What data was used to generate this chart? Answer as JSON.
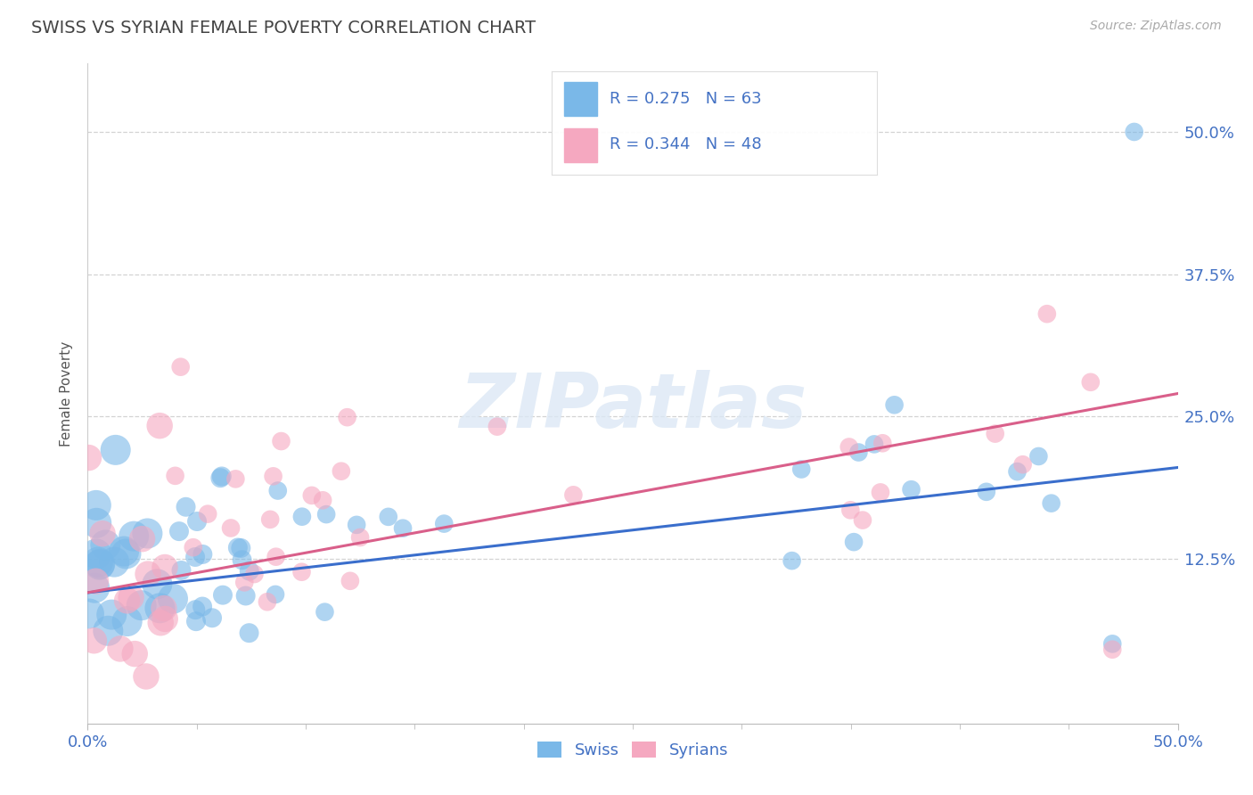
{
  "title": "SWISS VS SYRIAN FEMALE POVERTY CORRELATION CHART",
  "source": "Source: ZipAtlas.com",
  "ylabel": "Female Poverty",
  "ytick_labels": [
    "12.5%",
    "25.0%",
    "37.5%",
    "50.0%"
  ],
  "ytick_values": [
    0.125,
    0.25,
    0.375,
    0.5
  ],
  "xlim": [
    0.0,
    0.5
  ],
  "ylim": [
    -0.02,
    0.56
  ],
  "swiss_R": 0.275,
  "swiss_N": 63,
  "syrian_R": 0.344,
  "syrian_N": 48,
  "swiss_color": "#7ab8e8",
  "syrian_color": "#f5a8c0",
  "swiss_line_color": "#3a6ecc",
  "syrian_line_color": "#d95f8a",
  "legend_swiss_label": "Swiss",
  "legend_syrian_label": "Syrians",
  "background_color": "#ffffff",
  "grid_color": "#c8c8c8",
  "title_color": "#444444",
  "axis_label_color": "#4472c4",
  "watermark_color": "#dce8f5",
  "swiss_line_y0": 0.095,
  "swiss_line_y1": 0.205,
  "syrian_line_y0": 0.095,
  "syrian_line_y1": 0.27
}
